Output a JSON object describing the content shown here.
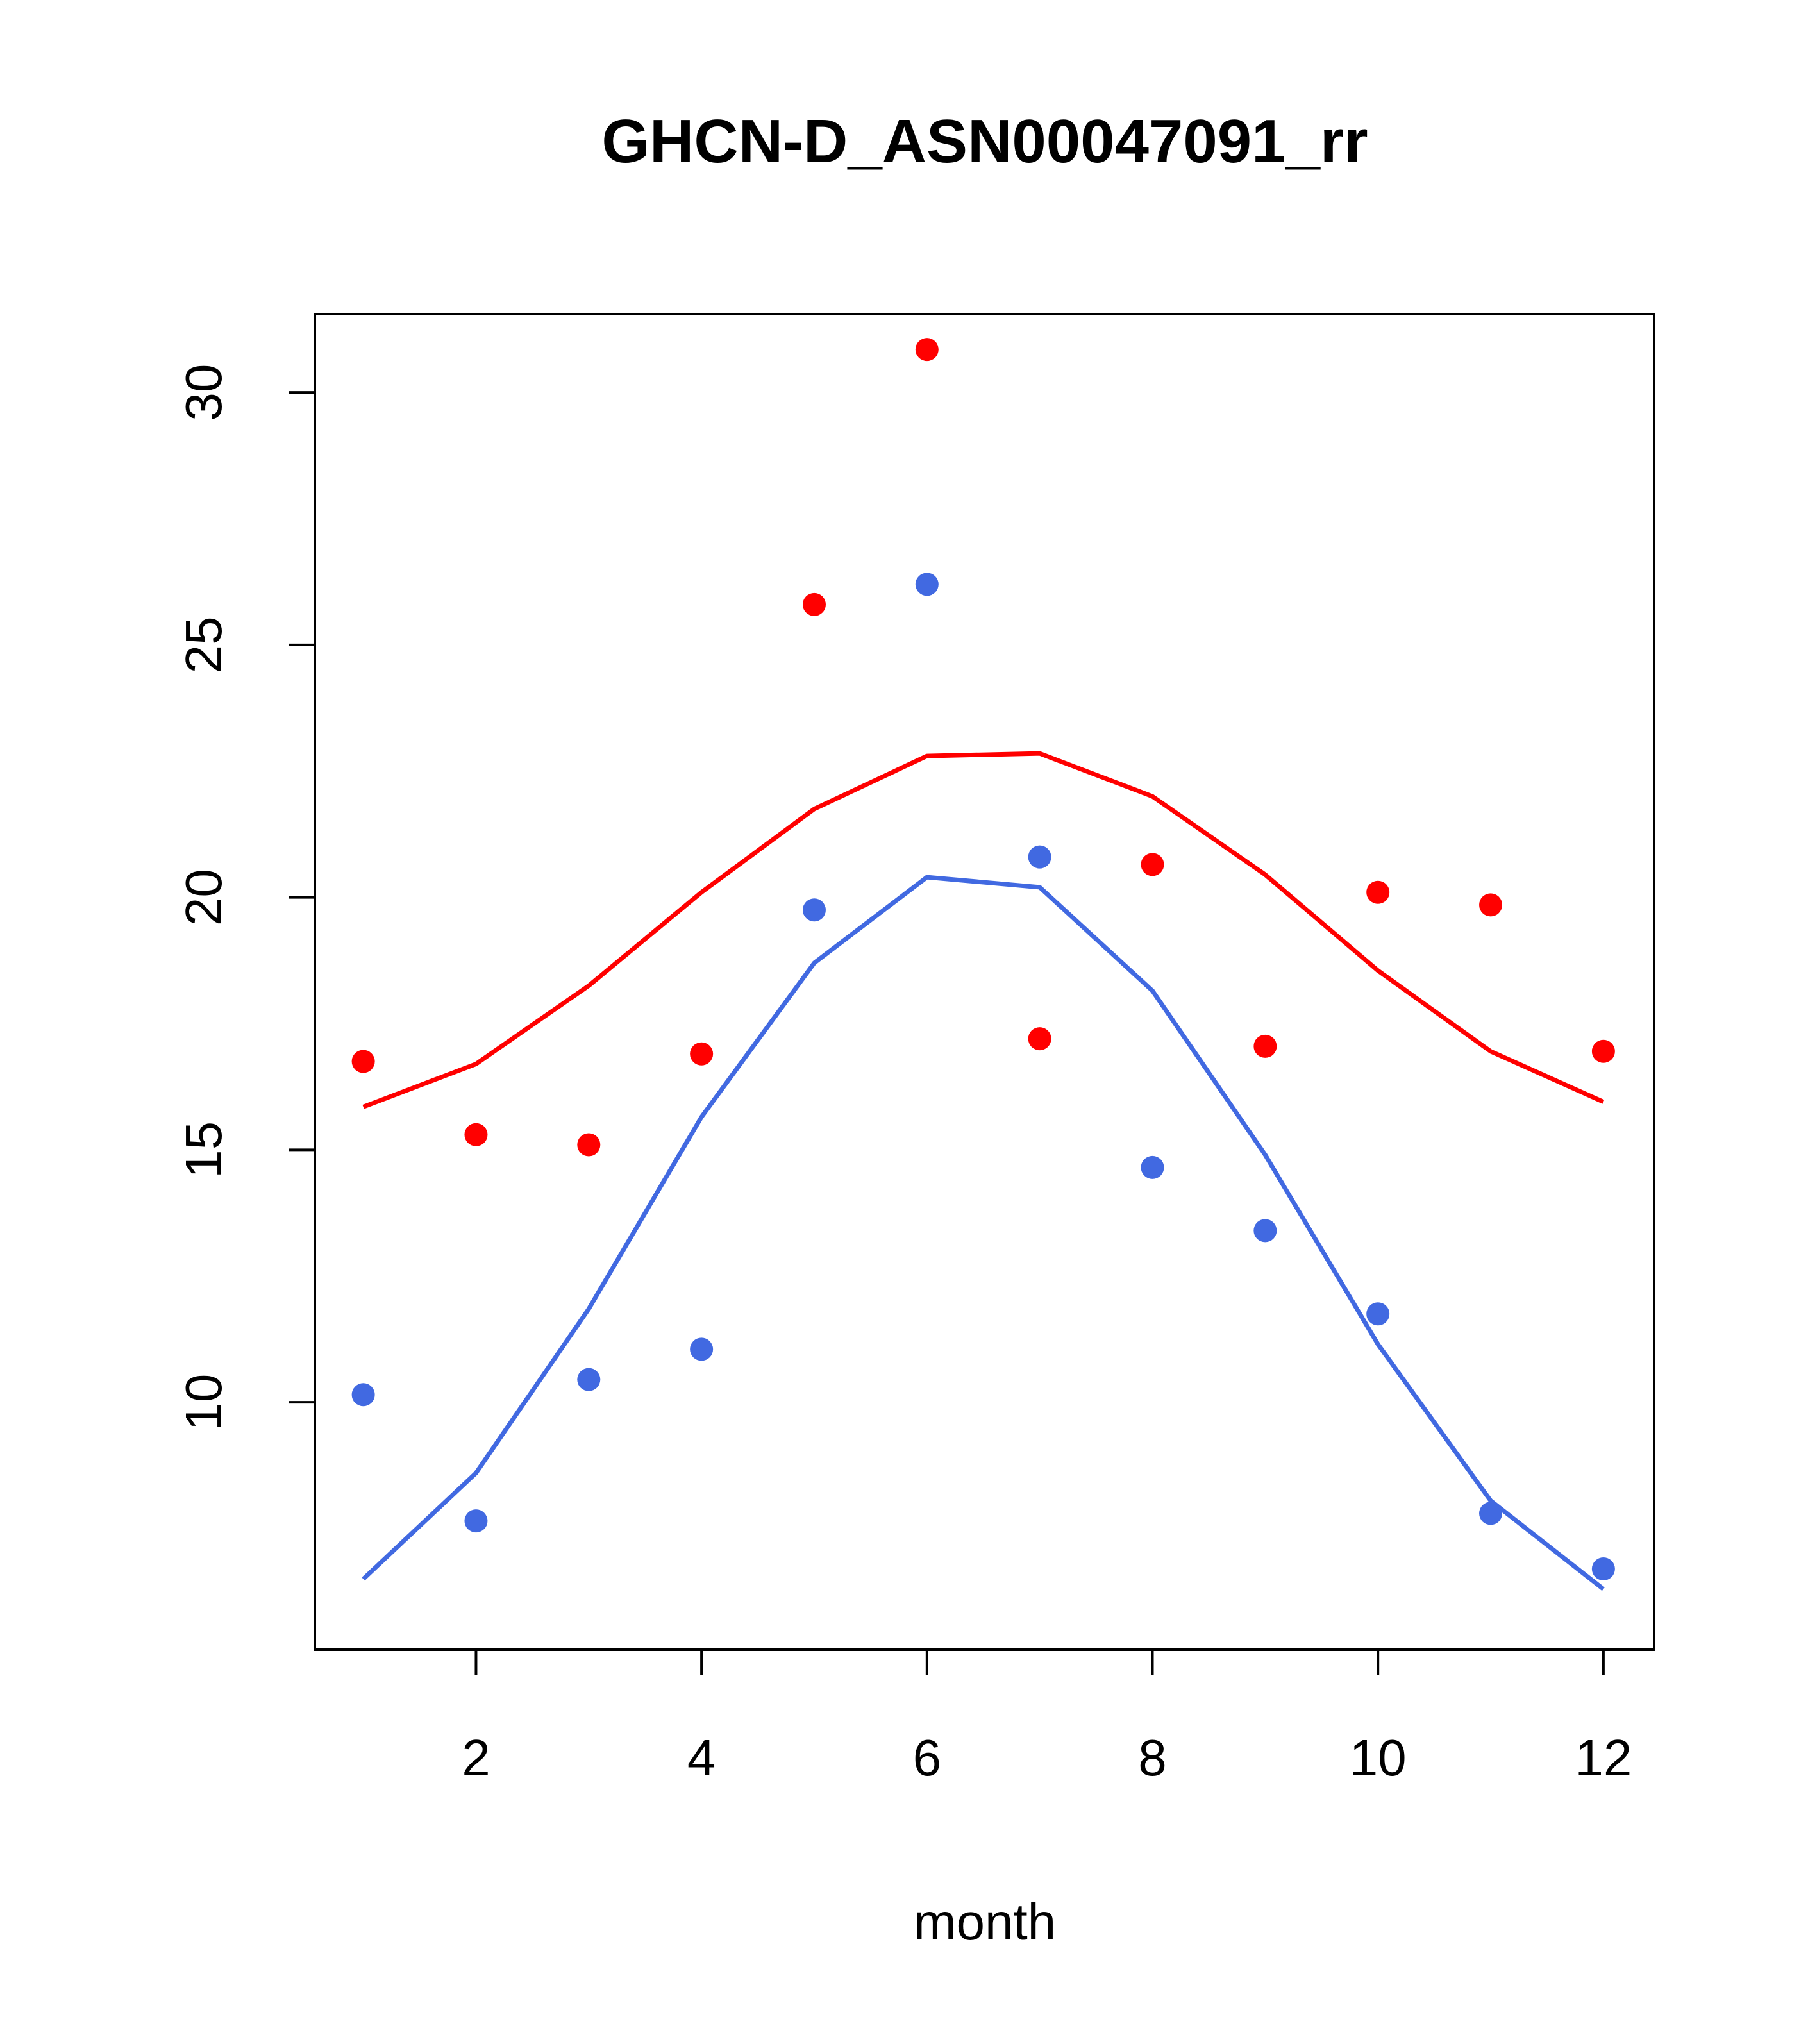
{
  "chart_data": {
    "type": "line+scatter",
    "title": "GHCN-D_ASN00047091_rr",
    "xlabel": "month",
    "ylabel": "",
    "xlim": [
      0.57,
      12.45
    ],
    "ylim": [
      5.1,
      31.55
    ],
    "x_ticks": [
      2,
      4,
      6,
      8,
      10,
      12
    ],
    "y_ticks": [
      10,
      15,
      20,
      25,
      30
    ],
    "months": [
      1,
      2,
      3,
      4,
      5,
      6,
      7,
      8,
      9,
      10,
      11,
      12
    ],
    "series": [
      {
        "name": "red-line",
        "kind": "line",
        "color": "#ff0000",
        "values": [
          15.85,
          16.7,
          18.25,
          20.1,
          21.75,
          22.8,
          22.85,
          22.0,
          20.45,
          18.55,
          16.95,
          15.95
        ]
      },
      {
        "name": "red-points",
        "kind": "points",
        "color": "#ff0000",
        "values": [
          16.75,
          15.3,
          15.1,
          16.9,
          25.8,
          30.85,
          17.2,
          20.65,
          17.05,
          20.1,
          19.85,
          16.95
        ]
      },
      {
        "name": "blue-line",
        "kind": "line",
        "color": "#4169e1",
        "values": [
          6.5,
          8.6,
          11.85,
          15.65,
          18.7,
          20.4,
          20.2,
          18.15,
          14.9,
          11.15,
          8.05,
          6.3
        ]
      },
      {
        "name": "blue-points",
        "kind": "points",
        "color": "#4169e1",
        "values": [
          10.15,
          7.65,
          10.45,
          11.05,
          19.75,
          26.2,
          20.8,
          14.65,
          13.4,
          11.75,
          7.8,
          6.7
        ]
      }
    ]
  }
}
